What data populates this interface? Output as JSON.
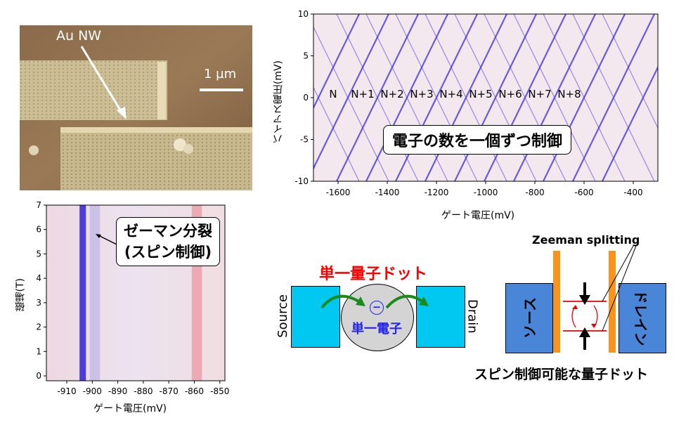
{
  "afm": {
    "label": "Au NW",
    "scale_bar": "1 µm"
  },
  "coulomb_plot": {
    "y_label": "バイアス電圧(mV)",
    "x_label": "ゲート電圧(mV)",
    "x_ticks": [
      "-1600",
      "-1400",
      "-1200",
      "-1000",
      "-800",
      "-600",
      "-400"
    ],
    "y_ticks": [
      "10",
      "5",
      "0",
      "-5",
      "-10"
    ],
    "state_labels": [
      "N",
      "N+1",
      "N+2",
      "N+3",
      "N+4",
      "N+5",
      "N+6",
      "N+7",
      "N+8"
    ],
    "callout": "電子の数を一個ずつ制御"
  },
  "zeeman_plot": {
    "y_label": "磁場(T)",
    "x_label": "ゲート電圧(mV)",
    "x_ticks": [
      "-910",
      "-900",
      "-890",
      "-880",
      "-870",
      "-860",
      "-850"
    ],
    "y_ticks": [
      "7",
      "6",
      "5",
      "4",
      "3",
      "2",
      "1",
      "0"
    ],
    "callout_line1": "ゼーマン分裂",
    "callout_line2": "(スピン制御)"
  },
  "sed_diagram": {
    "title": "単一量子ドット",
    "source": "Source",
    "drain": "Drain",
    "electron_symbol": "−",
    "electron_label": "単一電子"
  },
  "spin_diagram": {
    "zeeman_label": "Zeeman splitting",
    "left_label": "ソース",
    "right_label": "ドレイン",
    "caption": "スピン制御可能な量子ドット"
  },
  "colors": {
    "accent_red": "#ff0000",
    "electron_blue": "#2222ee",
    "box_cyan": "#00c8f0",
    "lead_blue": "#4a86d8",
    "barrier_orange": "#f7941d",
    "arrow_green": "#1a8a1a",
    "data_blue": "#3a2ad8"
  }
}
